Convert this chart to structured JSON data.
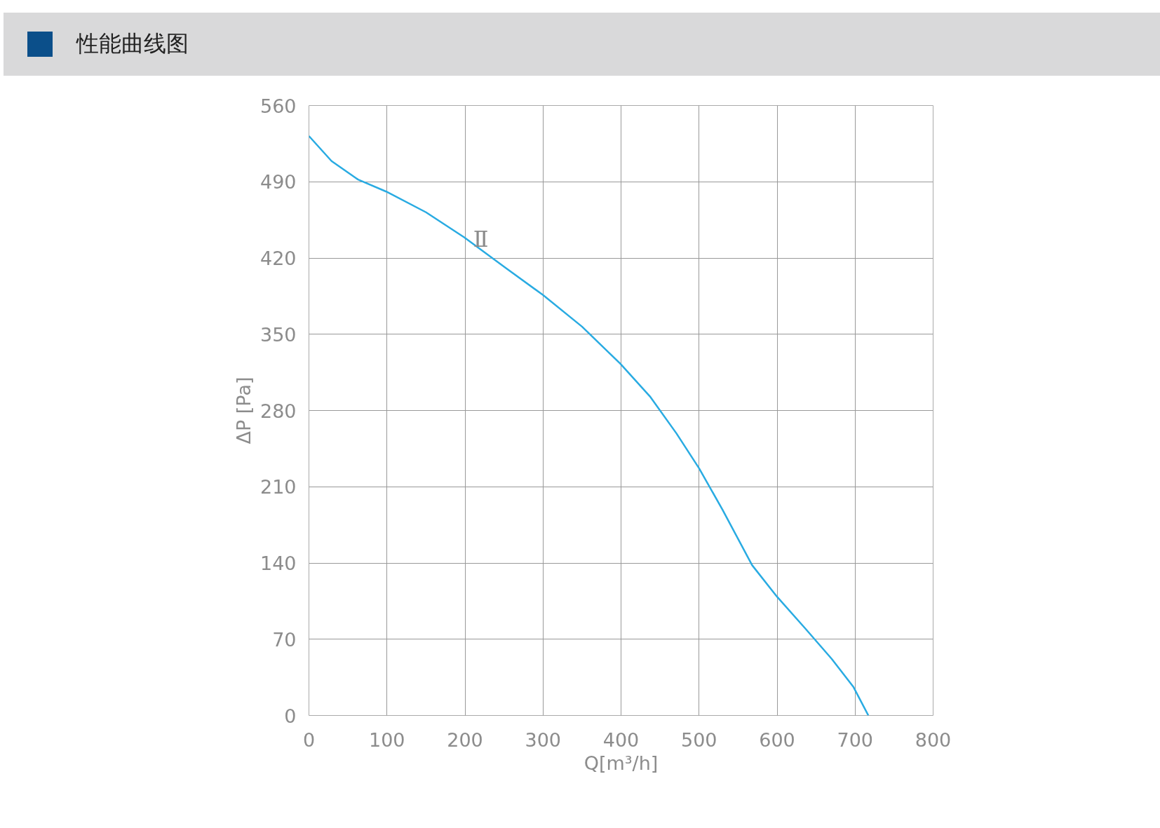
{
  "chart_data": {
    "type": "line",
    "title": "性能曲线图",
    "xlabel": "Q[m³/h]",
    "ylabel": "ΔP [Pa]",
    "x": [
      0,
      29,
      63,
      99,
      150,
      199,
      252,
      300,
      350,
      399,
      437,
      471,
      500,
      530,
      568,
      600,
      636,
      670,
      698,
      717
    ],
    "series": [
      {
        "color": "#29abe2",
        "values": [
          532,
          509,
          492,
          481,
          462,
          439,
          411,
          386,
          357,
          323,
          293,
          259,
          227,
          189,
          138,
          109,
          80,
          52,
          26,
          0
        ]
      }
    ],
    "xlim": [
      0,
      800
    ],
    "xticks": [
      0,
      100,
      200,
      300,
      400,
      500,
      600,
      700,
      800
    ],
    "ylim": [
      0,
      560
    ],
    "yticks": [
      0,
      70,
      140,
      210,
      280,
      350,
      420,
      490,
      560
    ],
    "grid": true,
    "marker": "none",
    "line_style": "solid",
    "annotations": [
      "Ⅱ"
    ]
  }
}
